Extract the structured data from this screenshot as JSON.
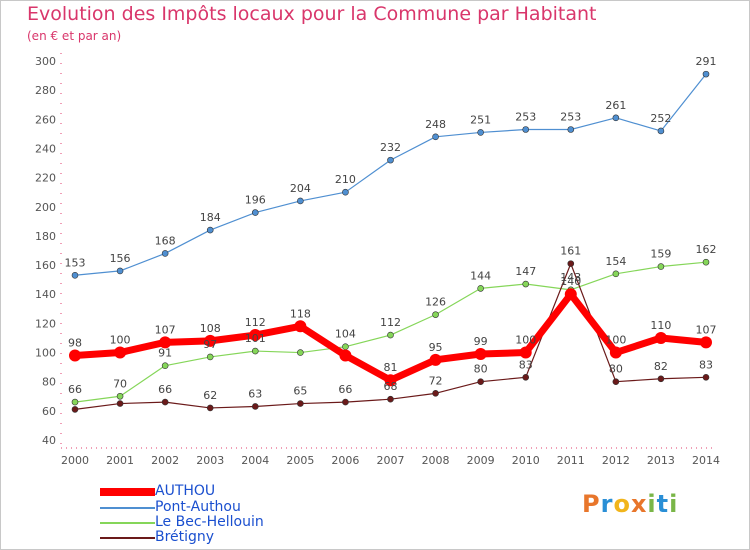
{
  "header": {
    "title": "Evolution des Impôts locaux pour la Commune par Habitant",
    "subtitle": "(en € et par an)"
  },
  "colors": {
    "title": "#d9366b",
    "axis_text": "#555555",
    "legend_text": "#1a4fcf"
  },
  "logo": {
    "text": "Proxiti",
    "letters": [
      "P",
      "r",
      "o",
      "x",
      "i",
      "t",
      "i"
    ],
    "colors": [
      "#e8762b",
      "#2a8fd6",
      "#f1b51c",
      "#e8762b",
      "#7ab648",
      "#2a8fd6",
      "#7ab648"
    ]
  },
  "chart_data": {
    "type": "line",
    "title": "Evolution des Impôts locaux pour la Commune par Habitant",
    "subtitle": "(en € et par an)",
    "x": [
      "2000",
      "2001",
      "2002",
      "2003",
      "2004",
      "2005",
      "2006",
      "2007",
      "2008",
      "2009",
      "2010",
      "2011",
      "2012",
      "2013",
      "2014"
    ],
    "ylim": [
      40,
      300
    ],
    "yticks": [
      40,
      60,
      80,
      100,
      120,
      140,
      160,
      180,
      200,
      220,
      240,
      260,
      280,
      300
    ],
    "grid": false,
    "legend_position": "bottom-left",
    "series": [
      {
        "name": "AUTHOU",
        "color": "#ff0000",
        "values": [
          98,
          100,
          107,
          108,
          112,
          118,
          98,
          81,
          95,
          99,
          100,
          140,
          100,
          110,
          107
        ],
        "labels": [
          "98",
          "100",
          "107",
          "108",
          "112",
          "118",
          "",
          "81",
          "95",
          "99",
          "100",
          "140",
          "100",
          "110",
          "107"
        ]
      },
      {
        "name": "Pont-Authou",
        "color": "#4f8fd1",
        "values": [
          153,
          156,
          168,
          184,
          196,
          204,
          210,
          232,
          248,
          251,
          253,
          253,
          261,
          252,
          291
        ]
      },
      {
        "name": "Le Bec-Hellouin",
        "color": "#85d659",
        "values": [
          66,
          70,
          91,
          97,
          101,
          100,
          104,
          112,
          126,
          144,
          147,
          143,
          154,
          159,
          162
        ],
        "labels": [
          "66",
          "70",
          "91",
          "97",
          "101",
          "",
          "104",
          "112",
          "126",
          "144",
          "147",
          "143",
          "154",
          "159",
          "162"
        ]
      },
      {
        "name": "Brétigny",
        "color": "#6b1a1a",
        "values": [
          61,
          65,
          66,
          62,
          63,
          65,
          66,
          68,
          72,
          80,
          83,
          161,
          80,
          82,
          83
        ],
        "labels": [
          "",
          "",
          "66",
          "62",
          "63",
          "65",
          "66",
          "68",
          "72",
          "80",
          "83",
          "161",
          "80",
          "82",
          "83"
        ]
      }
    ]
  }
}
